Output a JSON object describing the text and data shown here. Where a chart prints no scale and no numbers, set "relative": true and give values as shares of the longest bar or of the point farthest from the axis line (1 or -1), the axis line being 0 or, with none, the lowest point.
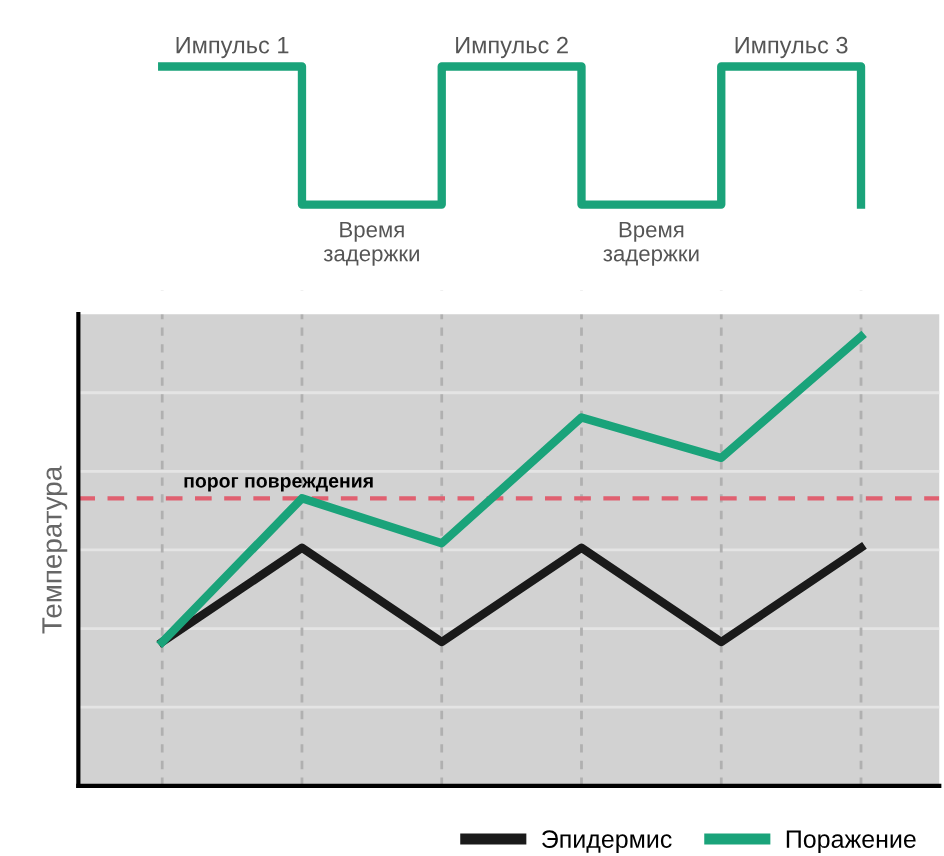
{
  "chart_data": [
    {
      "type": "step",
      "relative": true,
      "grid": "x",
      "categories": [
        null,
        null,
        null,
        null,
        null,
        null
      ],
      "series": [
        {
          "color": "#1aa37a",
          "values": [
            1,
            0,
            1,
            0,
            1,
            0
          ]
        }
      ],
      "annotations": [
        "Импульс 1",
        "Импульс 2",
        "Импульс 3",
        "Время задержки",
        "Время задержки"
      ]
    },
    {
      "type": "line",
      "relative": true,
      "grid": true,
      "legend": "bottom right",
      "ylabel": "Температура",
      "categories": [
        null,
        null,
        null,
        null,
        null,
        null
      ],
      "series": [
        {
          "name": "Эпидермис",
          "color": "#1a1a1a",
          "values": [
            0.32,
            0.53,
            0.32,
            0.53,
            0.32,
            0.53
          ]
        },
        {
          "name": "Поражение",
          "color": "#1aa37a",
          "values": [
            0.32,
            0.64,
            0.54,
            0.82,
            0.73,
            1.0
          ]
        }
      ],
      "ref_lines": [
        {
          "axis": "y",
          "value": 0.64,
          "label": "порог повреждения",
          "color": "#e06070",
          "line_style": "dashed"
        }
      ]
    }
  ]
}
